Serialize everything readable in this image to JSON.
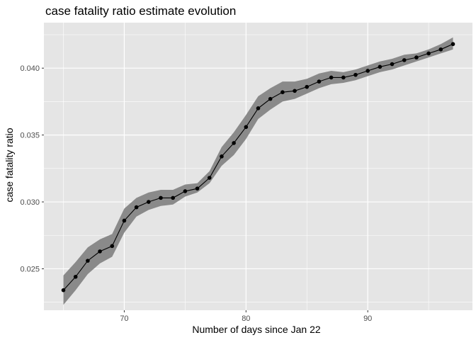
{
  "chart_data": {
    "type": "line",
    "title": "case fatality ratio estimate evolution",
    "xlabel": "Number of days since Jan 22",
    "ylabel": "case fatality ratio",
    "xlim": [
      63.4,
      98.6
    ],
    "ylim": [
      0.0219,
      0.0434
    ],
    "x_ticks": [
      70,
      80,
      90
    ],
    "x_minor_ticks": [
      65,
      75,
      85,
      95
    ],
    "y_ticks": [
      0.025,
      0.03,
      0.035,
      0.04
    ],
    "y_tick_labels": [
      "0.025",
      "0.030",
      "0.035",
      "0.040"
    ],
    "y_minor_ticks": [
      0.0225,
      0.0275,
      0.0325,
      0.0375,
      0.0425
    ],
    "grid": true,
    "series": [
      {
        "x": [
          65,
          66,
          67,
          68,
          69,
          70,
          71,
          72,
          73,
          74,
          75,
          76,
          77,
          78,
          79,
          80,
          81,
          82,
          83,
          84,
          85,
          86,
          87,
          88,
          89,
          90,
          91,
          92,
          93,
          94,
          95,
          96,
          97
        ],
        "values": [
          0.0234,
          0.0244,
          0.0256,
          0.0263,
          0.0267,
          0.0286,
          0.0296,
          0.03,
          0.0303,
          0.0303,
          0.0308,
          0.031,
          0.0318,
          0.0334,
          0.0344,
          0.0356,
          0.037,
          0.0377,
          0.0382,
          0.0383,
          0.0386,
          0.039,
          0.0393,
          0.0393,
          0.0395,
          0.0398,
          0.0401,
          0.0403,
          0.0406,
          0.0408,
          0.0411,
          0.0414,
          0.0418
        ],
        "lower": [
          0.0223,
          0.0234,
          0.0246,
          0.0254,
          0.0259,
          0.0277,
          0.0289,
          0.0294,
          0.0297,
          0.0298,
          0.0304,
          0.0307,
          0.0314,
          0.0327,
          0.0335,
          0.0347,
          0.0362,
          0.0369,
          0.0375,
          0.0377,
          0.0381,
          0.0385,
          0.0388,
          0.0389,
          0.0391,
          0.0394,
          0.0397,
          0.0399,
          0.0402,
          0.0405,
          0.0408,
          0.0411,
          0.0414
        ],
        "upper": [
          0.0245,
          0.0255,
          0.0266,
          0.0272,
          0.0276,
          0.0295,
          0.0303,
          0.0307,
          0.0309,
          0.0309,
          0.0313,
          0.0314,
          0.0323,
          0.0341,
          0.0352,
          0.0365,
          0.0379,
          0.0385,
          0.039,
          0.039,
          0.0392,
          0.0396,
          0.0398,
          0.0397,
          0.0399,
          0.0402,
          0.0405,
          0.0407,
          0.041,
          0.0411,
          0.0414,
          0.0418,
          0.0423
        ]
      }
    ],
    "colors": {
      "panel": "#e5e5e5",
      "grid": "#ffffff",
      "ribbon": "#8a8a8a",
      "line": "#000000",
      "point": "#000000"
    }
  }
}
